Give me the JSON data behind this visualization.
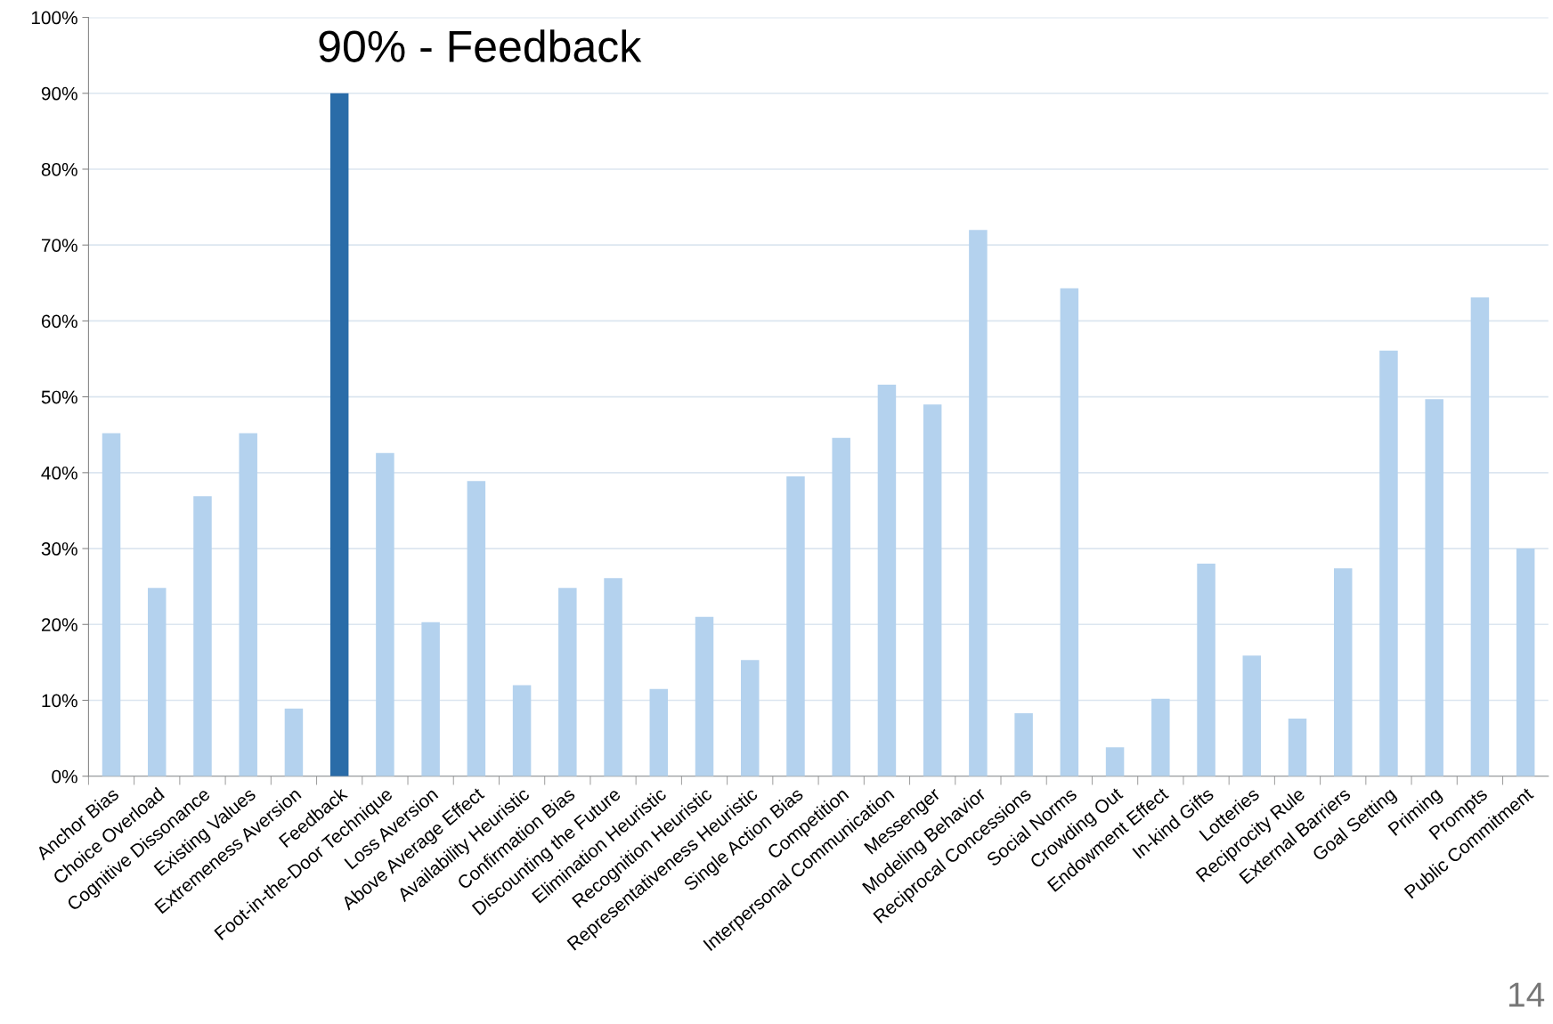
{
  "chart_data": {
    "type": "bar",
    "categories": [
      "Anchor Bias",
      "Choice Overload",
      "Cognitive Dissonance",
      "Existing Values",
      "Extremeness Aversion",
      "Feedback",
      "Foot-in-the-Door Technique",
      "Loss Aversion",
      "Above Average Effect",
      "Availability Heuristic",
      "Confirmation Bias",
      "Discounting the Future",
      "Elimination Heuristic",
      "Recognition Heuristic",
      "Representativeness Heuristic",
      "Single Action Bias",
      "Competition",
      "Interpersonal Communication",
      "Messenger",
      "Modeling Behavior",
      "Reciprocal Concessions",
      "Social Norms",
      "Crowding Out",
      "Endowment Effect",
      "In-kind Gifts",
      "Lotteries",
      "Reciprocity Rule",
      "External Barriers",
      "Goal Setting",
      "Priming",
      "Prompts",
      "Public Commitment"
    ],
    "values": [
      45.2,
      24.8,
      36.9,
      45.2,
      8.9,
      90,
      42.6,
      20.3,
      38.9,
      12.0,
      24.8,
      26.1,
      11.5,
      21.0,
      15.3,
      39.5,
      44.6,
      51.6,
      49.0,
      72.0,
      8.3,
      64.3,
      3.8,
      10.2,
      28.0,
      15.9,
      7.6,
      27.4,
      56.1,
      49.7,
      63.1,
      30.0
    ],
    "colors": [
      "#b4d2ee",
      "#b4d2ee",
      "#b4d2ee",
      "#b4d2ee",
      "#b4d2ee",
      "#2a6ca8",
      "#b4d2ee",
      "#b4d2ee",
      "#b4d2ee",
      "#b4d2ee",
      "#b4d2ee",
      "#b4d2ee",
      "#b4d2ee",
      "#b4d2ee",
      "#b4d2ee",
      "#b4d2ee",
      "#b4d2ee",
      "#b4d2ee",
      "#b4d2ee",
      "#b4d2ee",
      "#b4d2ee",
      "#b4d2ee",
      "#b4d2ee",
      "#b4d2ee",
      "#b4d2ee",
      "#b4d2ee",
      "#b4d2ee",
      "#b4d2ee",
      "#b4d2ee",
      "#b4d2ee",
      "#b4d2ee",
      "#b4d2ee"
    ],
    "ylim": [
      0,
      100
    ],
    "yticks": [
      {
        "value": 0,
        "label": "0%"
      },
      {
        "value": 10,
        "label": "10%"
      },
      {
        "value": 20,
        "label": "20%"
      },
      {
        "value": 30,
        "label": "30%"
      },
      {
        "value": 40,
        "label": "40%"
      },
      {
        "value": 50,
        "label": "50%"
      },
      {
        "value": 60,
        "label": "60%"
      },
      {
        "value": 70,
        "label": "70%"
      },
      {
        "value": 80,
        "label": "80%"
      },
      {
        "value": 90,
        "label": "90%"
      },
      {
        "value": 100,
        "label": "100%"
      }
    ],
    "grid": "y",
    "legend": false,
    "annotations": [
      {
        "text": "90% - Feedback",
        "x": "Feedback",
        "y": 90
      },
      "14"
    ]
  }
}
